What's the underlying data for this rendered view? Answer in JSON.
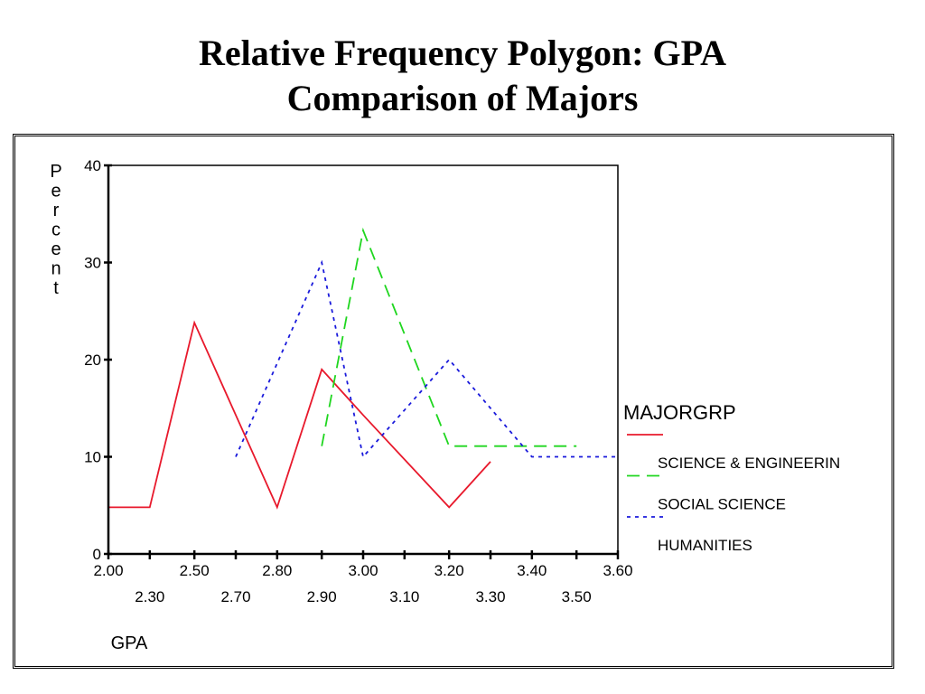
{
  "slide": {
    "title_line1": "Relative Frequency Polygon: GPA",
    "title_line2": "Comparison of Majors"
  },
  "chart_data": {
    "type": "line",
    "title": "",
    "xlabel": "GPA",
    "ylabel": "Percent",
    "xlim": [
      2.0,
      3.6
    ],
    "ylim": [
      0,
      40
    ],
    "x_tick_labels_row1": [
      "2.00",
      "2.50",
      "2.80",
      "3.00",
      "3.20",
      "3.40",
      "3.60"
    ],
    "x_tick_labels_row2": [
      "2.30",
      "2.70",
      "2.90",
      "3.10",
      "3.30",
      "3.50"
    ],
    "x_tick_positions": [
      2.0,
      2.13,
      2.27,
      2.4,
      2.53,
      2.67,
      2.8,
      2.93,
      3.07,
      3.2,
      3.33,
      3.47,
      3.6
    ],
    "y_ticks": [
      0,
      10,
      20,
      30,
      40
    ],
    "legend_title": "MAJORGRP",
    "legend_position": "right",
    "series": [
      {
        "name": "SCIENCE & ENGINEERIN",
        "color": "#e8192c",
        "dash": "solid",
        "x": [
          2.0,
          2.13,
          2.27,
          2.53,
          2.67,
          2.8,
          3.07,
          3.2
        ],
        "y": [
          4.8,
          4.8,
          23.8,
          4.8,
          19.0,
          14.3,
          4.8,
          9.5
        ]
      },
      {
        "name": "SOCIAL SCIENCE",
        "color": "#1fd61f",
        "dash": "long",
        "x": [
          2.67,
          2.8,
          3.07,
          3.47
        ],
        "y": [
          11.1,
          33.3,
          11.1,
          11.1
        ]
      },
      {
        "name": "HUMANITIES",
        "color": "#1a1adb",
        "dash": "dot",
        "x": [
          2.4,
          2.67,
          2.8,
          3.07,
          3.33,
          3.6
        ],
        "y": [
          10.0,
          30.0,
          10.0,
          20.0,
          10.0,
          10.0
        ]
      }
    ]
  }
}
